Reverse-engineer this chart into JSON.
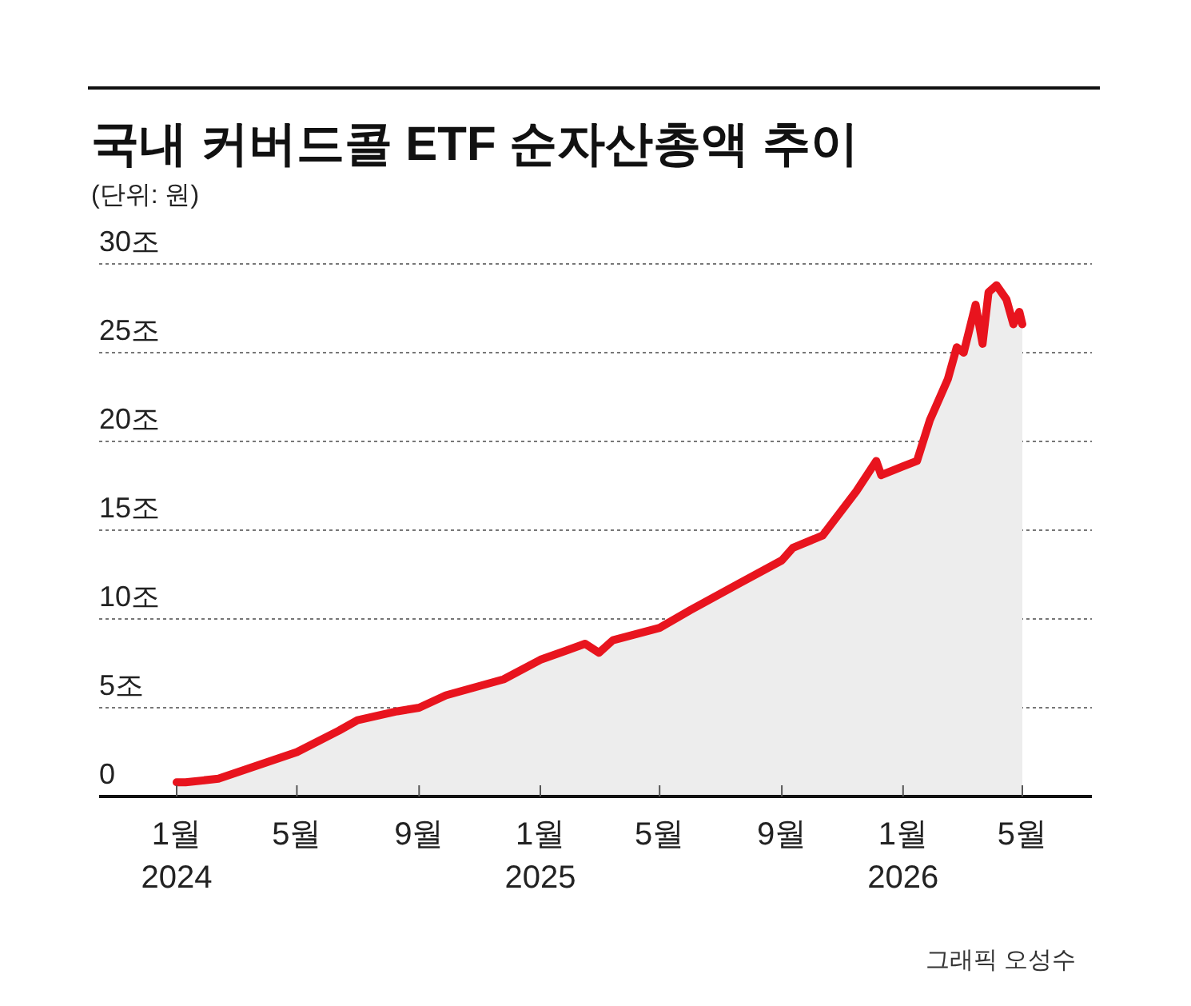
{
  "chart_data": {
    "type": "area",
    "title": "국내 커버드콜 ETF 순자산총액 추이",
    "subtitle": "(단위: 원)",
    "annotations": [
      "그래픽 오성수"
    ],
    "x": [
      "2024-01-01",
      "2024-01-10",
      "2024-02-12",
      "2024-05-01",
      "2024-06-12",
      "2024-07-01",
      "2024-08-10",
      "2024-09-01",
      "2024-09-28",
      "2024-11-25",
      "2025-01-01",
      "2025-01-26",
      "2025-02-15",
      "2025-03-01",
      "2025-03-15",
      "2025-05-01",
      "2025-06-01",
      "2025-07-20",
      "2025-09-01",
      "2025-09-12",
      "2025-10-12",
      "2025-11-15",
      "2025-12-05",
      "2025-12-10",
      "2026-01-01",
      "2026-01-15",
      "2026-01-28",
      "2026-02-15",
      "2026-02-24",
      "2026-03-03",
      "2026-03-15",
      "2026-03-22",
      "2026-03-28",
      "2026-04-05",
      "2026-04-15",
      "2026-04-22",
      "2026-04-28",
      "2026-05-01"
    ],
    "series": [
      {
        "color": "#e8141e",
        "values": [
          0.8,
          0.8,
          1.0,
          2.5,
          3.7,
          4.3,
          4.8,
          5.0,
          5.7,
          6.6,
          7.7,
          8.2,
          8.6,
          8.1,
          8.8,
          9.5,
          10.5,
          12.0,
          13.3,
          14.0,
          14.7,
          17.2,
          18.9,
          18.1,
          18.6,
          18.9,
          21.2,
          23.5,
          25.3,
          25.0,
          27.7,
          25.5,
          28.4,
          28.8,
          28.0,
          26.6,
          27.3,
          26.6
        ]
      }
    ],
    "xlim": [
      "2023-10-15",
      "2026-07-10"
    ],
    "xticks": [
      {
        "value": "2024-01-01",
        "label": "1월\n2024"
      },
      {
        "value": "2024-05-01",
        "label": "5월"
      },
      {
        "value": "2024-09-01",
        "label": "9월"
      },
      {
        "value": "2025-01-01",
        "label": "1월\n2025"
      },
      {
        "value": "2025-05-01",
        "label": "5월"
      },
      {
        "value": "2025-09-01",
        "label": "9월"
      },
      {
        "value": "2026-01-01",
        "label": "1월\n2026"
      },
      {
        "value": "2026-05-01",
        "label": "5월"
      }
    ],
    "ylim": [
      0,
      30
    ],
    "yticks": [
      0,
      {
        "value": 5,
        "label": "5조"
      },
      {
        "value": 10,
        "label": "10조"
      },
      {
        "value": 15,
        "label": "15조"
      },
      {
        "value": 20,
        "label": "20조"
      },
      {
        "value": 25,
        "label": "25조"
      },
      {
        "value": 30,
        "label": "30조"
      }
    ],
    "grid": "y"
  }
}
